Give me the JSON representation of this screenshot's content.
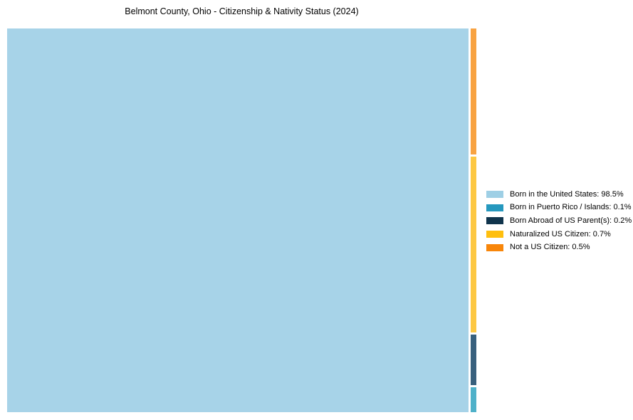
{
  "page": {
    "background_color": "#ffffff",
    "text_color": "#000000"
  },
  "chart_data": {
    "type": "treemap",
    "title": "Belmont County, Ohio - Citizenship & Nativity Status (2024)",
    "legend_position": "right",
    "legend_on": true,
    "gridlines": false,
    "axes": false,
    "total_pct": 100,
    "slices": [
      {
        "label": "Born in the United States",
        "value_pct": 98.5,
        "legend_label": "Born in the United States: 98.5%",
        "cell_color": "#a7d3e8",
        "legend_color": "#9ecfe5"
      },
      {
        "label": "Born in Puerto Rico / Islands",
        "value_pct": 0.1,
        "legend_label": "Born in Puerto Rico / Islands: 0.1%",
        "cell_color": "#4fb1c9",
        "legend_color": "#2598be"
      },
      {
        "label": "Born Abroad of US Parent(s)",
        "value_pct": 0.2,
        "legend_label": "Born Abroad of US Parent(s): 0.2%",
        "cell_color": "#38607d",
        "legend_color": "#10344c"
      },
      {
        "label": "Naturalized US Citizen",
        "value_pct": 0.7,
        "legend_label": "Naturalized US Citizen: 0.7%",
        "cell_color": "#fdc843",
        "legend_color": "#ffbf0e"
      },
      {
        "label": "Not a US Citizen",
        "value_pct": 0.5,
        "legend_label": "Not a US Citizen: 0.5%",
        "cell_color": "#f8a342",
        "legend_color": "#f8860a"
      }
    ],
    "strip_layout_note": "largest slice fills left block; remaining slices stacked in right strip top-to-bottom in reverse legend order"
  }
}
